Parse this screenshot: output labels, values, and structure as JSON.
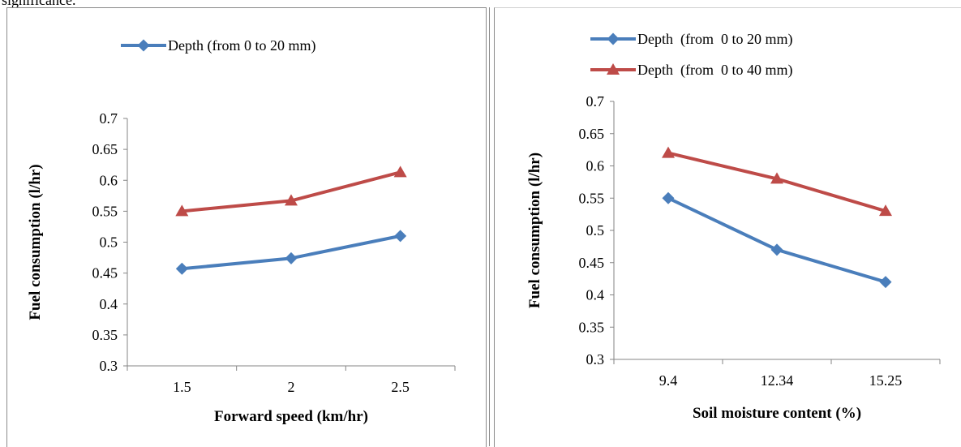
{
  "header_text": "significance.",
  "charts": [
    {
      "type": "line",
      "categories": [
        "1.5",
        "2",
        "2.5"
      ],
      "series": [
        {
          "name": "Depth (from 0 to 20 mm)",
          "values": [
            0.457,
            0.474,
            0.51
          ],
          "color": "#4a7ebb",
          "marker": "diamond"
        },
        {
          "name": "",
          "values": [
            0.55,
            0.567,
            0.613
          ],
          "color": "#be4b48",
          "marker": "triangle"
        }
      ],
      "xlabel": "Forward speed (km/hr)",
      "ylabel": "Fuel consumption (l/hr)",
      "ylim": [
        0.3,
        0.7
      ],
      "yticks": [
        "0.3",
        "0.35",
        "0.4",
        "0.45",
        "0.5",
        "0.55",
        "0.6",
        "0.65",
        "0.7"
      ],
      "grid": false,
      "legend": "top"
    },
    {
      "type": "line",
      "categories": [
        "9.4",
        "12.34",
        "15.25"
      ],
      "series": [
        {
          "name": "Depth  (from  0 to 20 mm)",
          "values": [
            0.55,
            0.47,
            0.42
          ],
          "color": "#4a7ebb",
          "marker": "diamond"
        },
        {
          "name": "Depth  (from  0 to 40 mm)",
          "values": [
            0.62,
            0.58,
            0.53
          ],
          "color": "#be4b48",
          "marker": "triangle"
        }
      ],
      "xlabel": "Soil moisture content (%)",
      "ylabel": "Fuel consumption (l/hr)",
      "ylim": [
        0.3,
        0.7
      ],
      "yticks": [
        "0.3",
        "0.35",
        "0.4",
        "0.45",
        "0.5",
        "0.55",
        "0.6",
        "0.65",
        "0.7"
      ],
      "grid": false,
      "legend": "top"
    }
  ],
  "chart_data": [
    {
      "type": "line",
      "categories": [
        "1.5",
        "2",
        "2.5"
      ],
      "series": [
        {
          "name": "Depth (from 0 to 20 mm)",
          "values": [
            0.457,
            0.474,
            0.51
          ]
        },
        {
          "values": [
            0.55,
            0.567,
            0.613
          ]
        }
      ],
      "xlabel": "Forward speed (km/hr)",
      "ylabel": "Fuel consumption (l/hr)",
      "ylim": [
        0.3,
        0.7
      ]
    },
    {
      "type": "line",
      "categories": [
        "9.4",
        "12.34",
        "15.25"
      ],
      "series": [
        {
          "name": "Depth  (from  0 to 20 mm)",
          "values": [
            0.55,
            0.47,
            0.42
          ]
        },
        {
          "name": "Depth  (from  0 to 40 mm)",
          "values": [
            0.62,
            0.58,
            0.53
          ]
        }
      ],
      "xlabel": "Soil moisture content (%)",
      "ylabel": "Fuel consumption (l/hr)",
      "ylim": [
        0.3,
        0.7
      ]
    }
  ]
}
